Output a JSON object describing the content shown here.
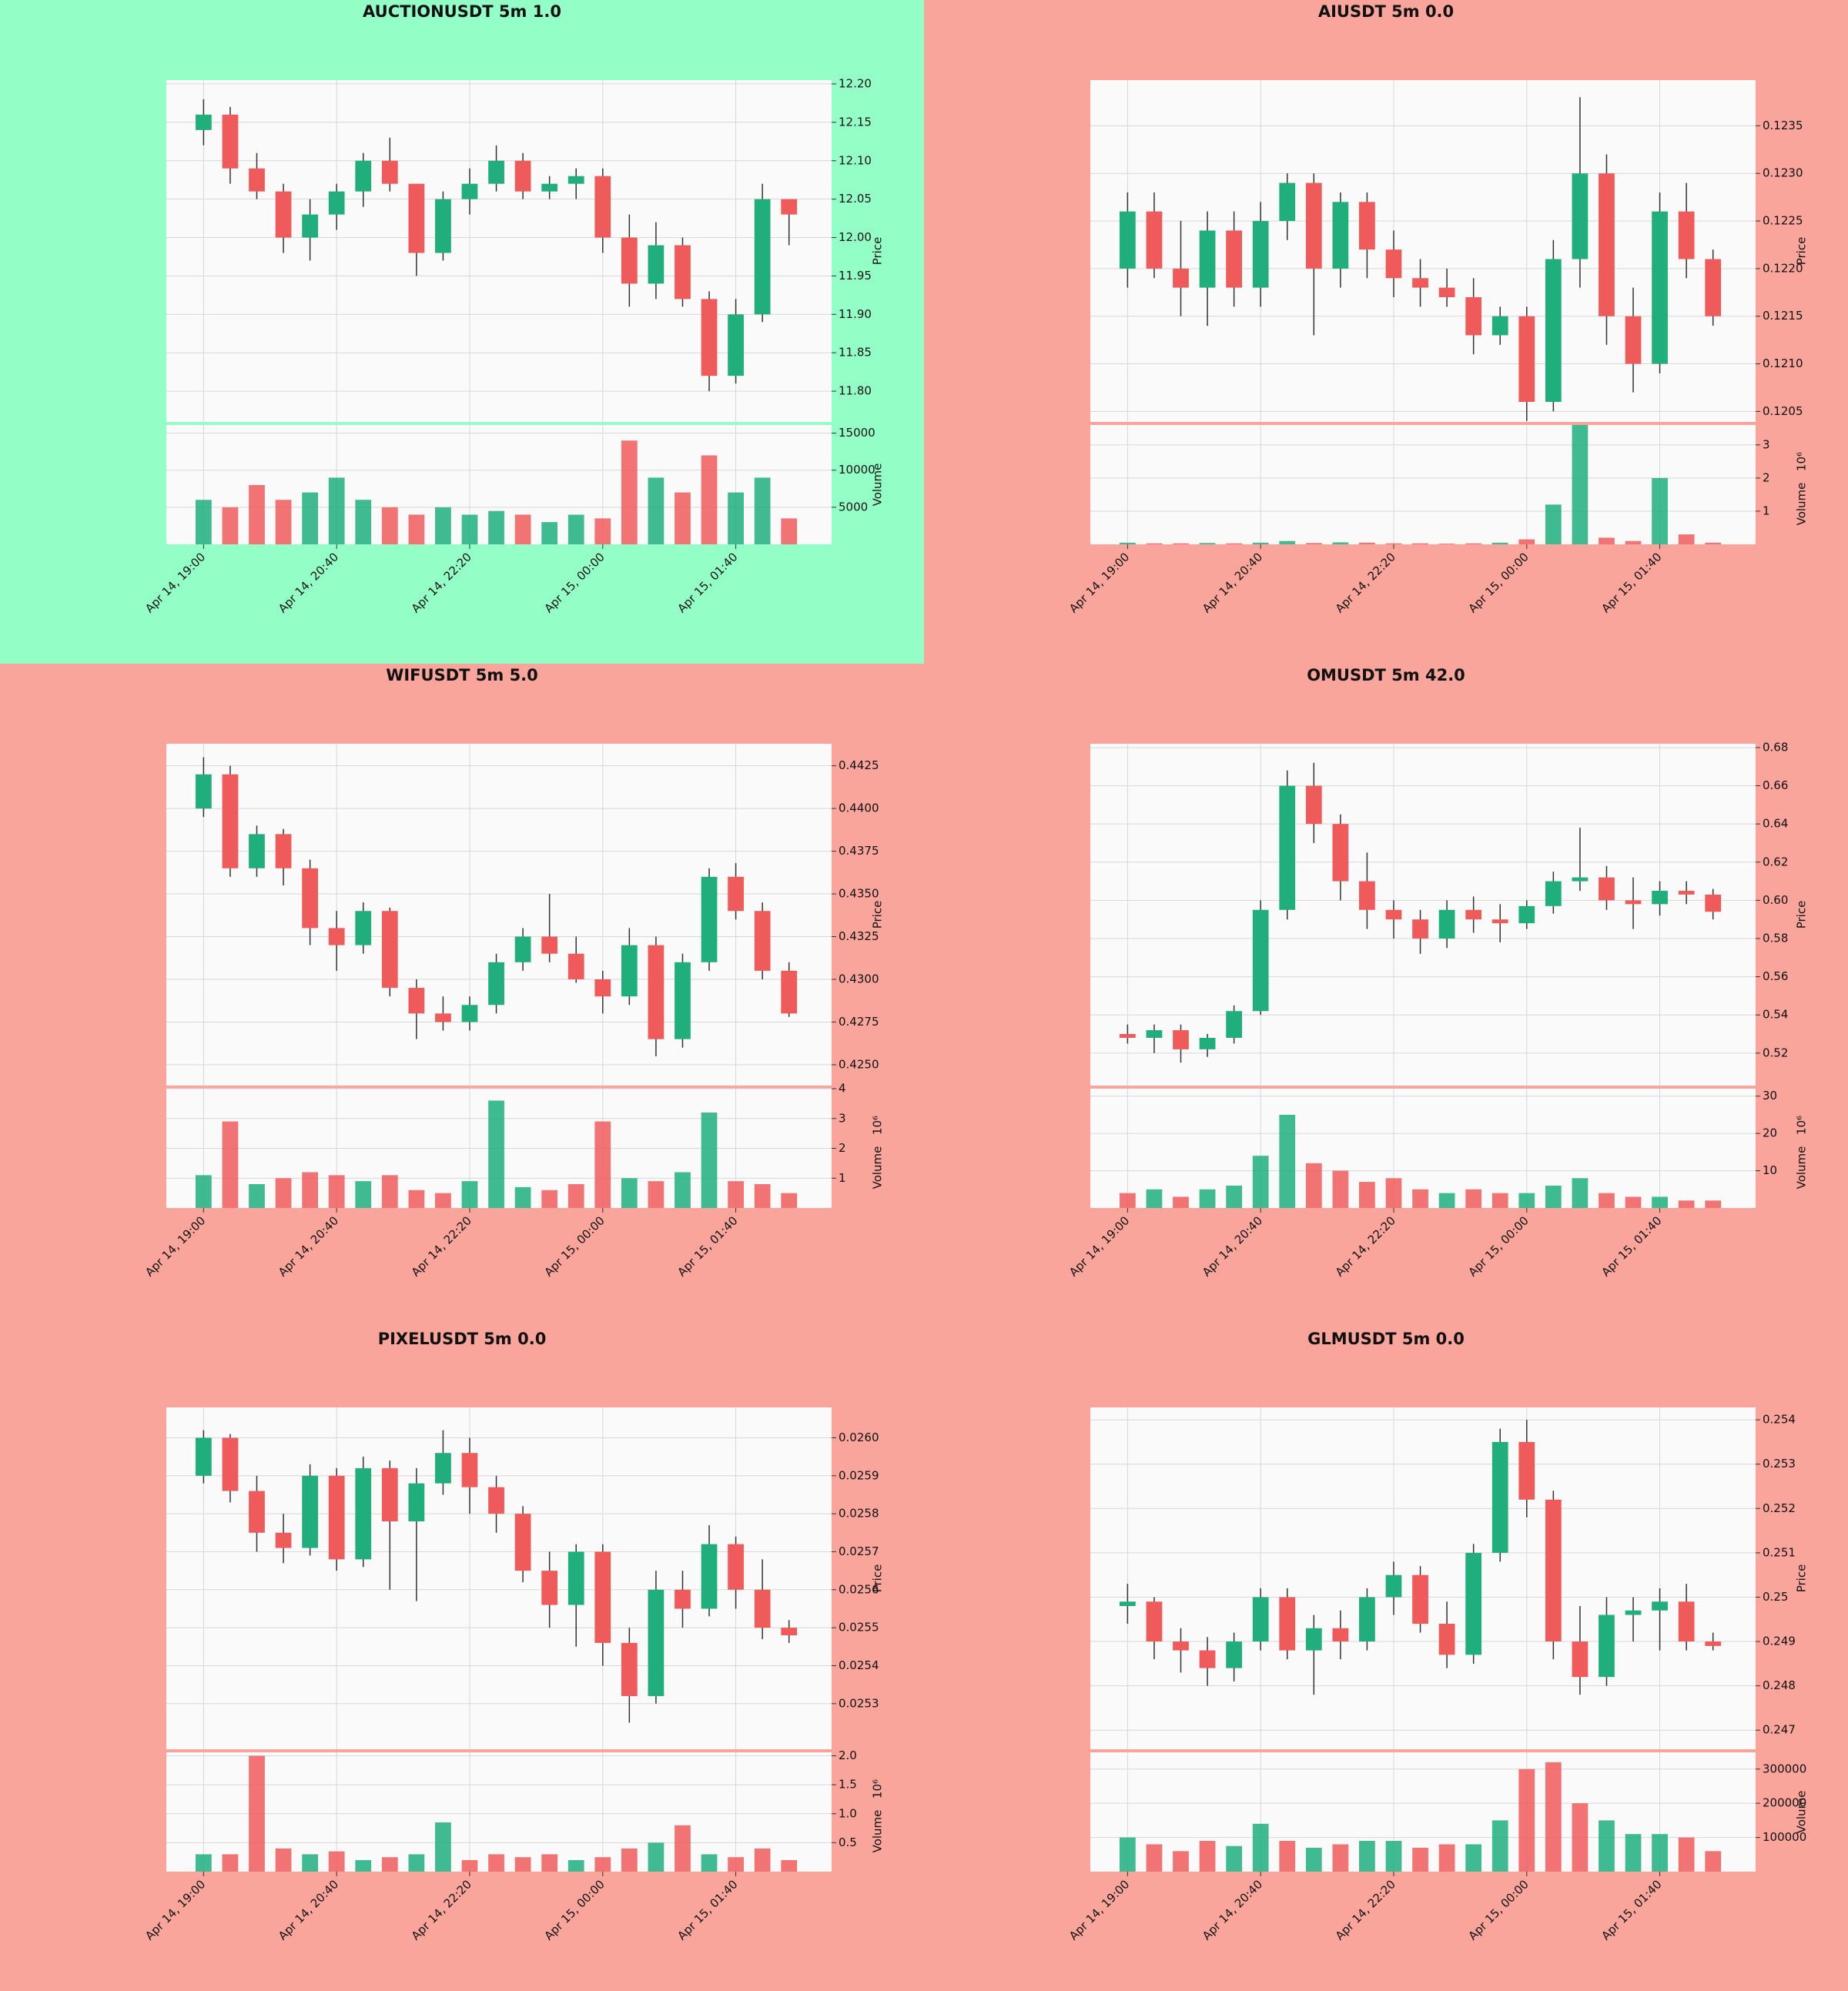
{
  "chart_data": [
    {
      "type": "candlestick",
      "title": "AUCTIONUSDT 5m 1.0",
      "background": "#93ffc7",
      "up_color": "#1fae7c",
      "down_color": "#ef5a5a",
      "ylabel": "Price",
      "y2label": "Volume",
      "xlim": [
        -1.4,
        23.6
      ],
      "xticks": [
        {
          "value": 0,
          "label": "Apr 14, 19:00"
        },
        {
          "value": 5,
          "label": "Apr 14, 20:40"
        },
        {
          "value": 10,
          "label": "Apr 14, 22:20"
        },
        {
          "value": 15,
          "label": "Apr 15, 00:00"
        },
        {
          "value": 20,
          "label": "Apr 15, 01:40"
        }
      ],
      "ylim": [
        11.76,
        12.205
      ],
      "yticks": [
        {
          "value": 11.8,
          "label": "11.80"
        },
        11.85,
        {
          "value": 11.9,
          "label": "11.90"
        },
        11.95,
        {
          "value": 12.0,
          "label": "12.00"
        },
        12.05,
        {
          "value": 12.1,
          "label": "12.10"
        },
        12.15,
        {
          "value": 12.2,
          "label": "12.20"
        }
      ],
      "y2lim": [
        0,
        16100
      ],
      "y2ticks": [
        5000,
        10000,
        15000
      ],
      "open": [
        12.14,
        12.16,
        12.09,
        12.06,
        12.0,
        12.03,
        12.06,
        12.1,
        12.07,
        11.98,
        12.05,
        12.07,
        12.1,
        12.06,
        12.07,
        12.08,
        12.0,
        11.94,
        11.99,
        11.92,
        11.82,
        11.9,
        12.05
      ],
      "high": [
        12.18,
        12.17,
        12.11,
        12.07,
        12.05,
        12.07,
        12.11,
        12.13,
        12.07,
        12.06,
        12.09,
        12.12,
        12.11,
        12.08,
        12.09,
        12.09,
        12.03,
        12.02,
        12.0,
        11.93,
        11.92,
        12.07,
        12.05
      ],
      "low": [
        12.12,
        12.07,
        12.05,
        11.98,
        11.97,
        12.01,
        12.04,
        12.06,
        11.95,
        11.97,
        12.03,
        12.06,
        12.05,
        12.05,
        12.05,
        11.98,
        11.91,
        11.92,
        11.91,
        11.8,
        11.81,
        11.89,
        11.99
      ],
      "close": [
        12.16,
        12.09,
        12.06,
        12.0,
        12.03,
        12.06,
        12.1,
        12.07,
        11.98,
        12.05,
        12.07,
        12.1,
        12.06,
        12.07,
        12.08,
        12.0,
        11.94,
        11.99,
        11.92,
        11.82,
        11.9,
        12.05,
        12.03
      ],
      "volume": [
        6000,
        5000,
        8000,
        6000,
        7000,
        9000,
        6000,
        5000,
        4000,
        5000,
        4000,
        4500,
        4000,
        3000,
        4000,
        3500,
        14000,
        9000,
        7000,
        12000,
        7000,
        9000,
        3500
      ]
    },
    {
      "type": "candlestick",
      "title": "AIUSDT 5m 0.0",
      "background": "#f9a59b",
      "up_color": "#1fae7c",
      "down_color": "#ef5a5a",
      "ylabel": "Price",
      "y2label": "Volume",
      "y2scale": "10⁶",
      "xlim": [
        -1.4,
        23.6
      ],
      "xticks": [
        {
          "value": 0,
          "label": "Apr 14, 19:00"
        },
        {
          "value": 5,
          "label": "Apr 14, 20:40"
        },
        {
          "value": 10,
          "label": "Apr 14, 22:20"
        },
        {
          "value": 15,
          "label": "Apr 15, 00:00"
        },
        {
          "value": 20,
          "label": "Apr 15, 01:40"
        }
      ],
      "ylim": [
        0.12039,
        0.12398
      ],
      "yticks": [
        0.1205,
        {
          "value": 0.121,
          "label": "0.1210"
        },
        0.1215,
        {
          "value": 0.122,
          "label": "0.1220"
        },
        0.1225,
        {
          "value": 0.123,
          "label": "0.1230"
        },
        0.1235
      ],
      "y2lim": [
        0,
        3.6
      ],
      "y2ticks": [
        1,
        2,
        3
      ],
      "open": [
        0.122,
        0.1226,
        0.122,
        0.1218,
        0.1224,
        0.1218,
        0.1225,
        0.1229,
        0.122,
        0.1227,
        0.1222,
        0.1219,
        0.1218,
        0.1217,
        0.1213,
        0.1215,
        0.1206,
        0.1221,
        0.123,
        0.1215,
        0.121,
        0.1226,
        0.1221
      ],
      "high": [
        0.1228,
        0.1228,
        0.1225,
        0.1226,
        0.1226,
        0.1227,
        0.123,
        0.123,
        0.1228,
        0.1228,
        0.1224,
        0.1221,
        0.122,
        0.1219,
        0.1216,
        0.1216,
        0.1223,
        0.1238,
        0.1232,
        0.1218,
        0.1228,
        0.1229,
        0.1222
      ],
      "low": [
        0.1218,
        0.1219,
        0.1215,
        0.1214,
        0.1216,
        0.1216,
        0.1223,
        0.1213,
        0.1218,
        0.1219,
        0.1217,
        0.1216,
        0.1216,
        0.1211,
        0.1212,
        0.1204,
        0.1205,
        0.1218,
        0.1212,
        0.1207,
        0.1209,
        0.1219,
        0.1214
      ],
      "close": [
        0.1226,
        0.122,
        0.1218,
        0.1224,
        0.1218,
        0.1225,
        0.1229,
        0.122,
        0.1227,
        0.1222,
        0.1219,
        0.1218,
        0.1217,
        0.1213,
        0.1215,
        0.1206,
        0.1221,
        0.123,
        0.1215,
        0.121,
        0.1226,
        0.1221,
        0.1215
      ],
      "volume": [
        0.05,
        0.03,
        0.03,
        0.04,
        0.03,
        0.05,
        0.1,
        0.04,
        0.06,
        0.05,
        0.03,
        0.03,
        0.02,
        0.03,
        0.05,
        0.15,
        1.2,
        3.6,
        0.2,
        0.1,
        2.0,
        0.3,
        0.05
      ]
    },
    {
      "type": "candlestick",
      "title": "WIFUSDT 5m 5.0",
      "background": "#f9a59b",
      "up_color": "#1fae7c",
      "down_color": "#ef5a5a",
      "ylabel": "Price",
      "y2label": "Volume",
      "y2scale": "10⁶",
      "xlim": [
        -1.4,
        23.6
      ],
      "xticks": [
        {
          "value": 0,
          "label": "Apr 14, 19:00"
        },
        {
          "value": 5,
          "label": "Apr 14, 20:40"
        },
        {
          "value": 10,
          "label": "Apr 14, 22:20"
        },
        {
          "value": 15,
          "label": "Apr 15, 00:00"
        },
        {
          "value": 20,
          "label": "Apr 15, 01:40"
        }
      ],
      "ylim": [
        0.42378,
        0.44379
      ],
      "yticks": [
        {
          "value": 0.425,
          "label": "0.4250"
        },
        0.4275,
        {
          "value": 0.43,
          "label": "0.4300"
        },
        0.4325,
        {
          "value": 0.435,
          "label": "0.4350"
        },
        0.4375,
        {
          "value": 0.44,
          "label": "0.4400"
        },
        0.4425
      ],
      "y2lim": [
        0,
        4
      ],
      "y2ticks": [
        1,
        2,
        3,
        4
      ],
      "open": [
        0.44,
        0.442,
        0.4365,
        0.4385,
        0.4365,
        0.433,
        0.432,
        0.434,
        0.4295,
        0.428,
        0.4275,
        0.4285,
        0.431,
        0.4325,
        0.4315,
        0.43,
        0.429,
        0.432,
        0.4265,
        0.431,
        0.436,
        0.434,
        0.4305
      ],
      "high": [
        0.443,
        0.4425,
        0.439,
        0.4388,
        0.437,
        0.434,
        0.4345,
        0.4342,
        0.43,
        0.429,
        0.429,
        0.4315,
        0.433,
        0.435,
        0.4325,
        0.4305,
        0.433,
        0.4325,
        0.4315,
        0.4365,
        0.4368,
        0.4345,
        0.431
      ],
      "low": [
        0.4395,
        0.436,
        0.436,
        0.4355,
        0.432,
        0.4305,
        0.4315,
        0.429,
        0.4265,
        0.427,
        0.427,
        0.428,
        0.4305,
        0.431,
        0.4298,
        0.428,
        0.4285,
        0.4255,
        0.426,
        0.4305,
        0.4335,
        0.43,
        0.4278
      ],
      "close": [
        0.442,
        0.4365,
        0.4385,
        0.4365,
        0.433,
        0.432,
        0.434,
        0.4295,
        0.428,
        0.4275,
        0.4285,
        0.431,
        0.4325,
        0.4315,
        0.43,
        0.429,
        0.432,
        0.4265,
        0.431,
        0.436,
        0.434,
        0.4305,
        0.428
      ],
      "volume": [
        1.1,
        2.9,
        0.8,
        1.0,
        1.2,
        1.1,
        0.9,
        1.1,
        0.6,
        0.5,
        0.9,
        3.6,
        0.7,
        0.6,
        0.8,
        2.9,
        1.0,
        0.9,
        1.2,
        3.2,
        0.9,
        0.8,
        0.5
      ]
    },
    {
      "type": "candlestick",
      "title": "OMUSDT 5m 42.0",
      "background": "#f9a59b",
      "up_color": "#1fae7c",
      "down_color": "#ef5a5a",
      "ylabel": "Price",
      "y2label": "Volume",
      "y2scale": "10⁶",
      "xlim": [
        -1.4,
        23.6
      ],
      "xticks": [
        {
          "value": 0,
          "label": "Apr 14, 19:00"
        },
        {
          "value": 5,
          "label": "Apr 14, 20:40"
        },
        {
          "value": 10,
          "label": "Apr 14, 22:20"
        },
        {
          "value": 15,
          "label": "Apr 15, 00:00"
        },
        {
          "value": 20,
          "label": "Apr 15, 01:40"
        }
      ],
      "ylim": [
        0.503,
        0.682
      ],
      "yticks": [
        0.52,
        0.54,
        0.56,
        0.58,
        {
          "value": 0.6,
          "label": "0.60"
        },
        0.62,
        0.64,
        0.66,
        0.68
      ],
      "y2lim": [
        0,
        32
      ],
      "y2ticks": [
        10,
        20,
        30
      ],
      "open": [
        0.53,
        0.528,
        0.532,
        0.522,
        0.528,
        0.542,
        0.595,
        0.66,
        0.64,
        0.61,
        0.595,
        0.59,
        0.58,
        0.595,
        0.59,
        0.588,
        0.597,
        0.61,
        0.612,
        0.6,
        0.598,
        0.605,
        0.603
      ],
      "high": [
        0.535,
        0.535,
        0.535,
        0.53,
        0.545,
        0.6,
        0.668,
        0.672,
        0.645,
        0.625,
        0.6,
        0.595,
        0.6,
        0.602,
        0.598,
        0.6,
        0.615,
        0.638,
        0.618,
        0.612,
        0.61,
        0.61,
        0.606
      ],
      "low": [
        0.525,
        0.52,
        0.515,
        0.518,
        0.525,
        0.54,
        0.59,
        0.63,
        0.6,
        0.585,
        0.58,
        0.572,
        0.575,
        0.583,
        0.578,
        0.585,
        0.593,
        0.605,
        0.595,
        0.585,
        0.592,
        0.598,
        0.59
      ],
      "close": [
        0.528,
        0.532,
        0.522,
        0.528,
        0.542,
        0.595,
        0.66,
        0.64,
        0.61,
        0.595,
        0.59,
        0.58,
        0.595,
        0.59,
        0.588,
        0.597,
        0.61,
        0.612,
        0.6,
        0.598,
        0.605,
        0.603,
        0.594
      ],
      "volume": [
        4,
        5,
        3,
        5,
        6,
        14,
        25,
        12,
        10,
        7,
        8,
        5,
        4,
        5,
        4,
        4,
        6,
        8,
        4,
        3,
        3,
        2,
        2
      ]
    },
    {
      "type": "candlestick",
      "title": "PIXELUSDT 5m 0.0",
      "background": "#f9a59b",
      "up_color": "#1fae7c",
      "down_color": "#ef5a5a",
      "ylabel": "Price",
      "y2label": "Volume",
      "y2scale": "10⁶",
      "xlim": [
        -1.4,
        23.6
      ],
      "xticks": [
        {
          "value": 0,
          "label": "Apr 14, 19:00"
        },
        {
          "value": 5,
          "label": "Apr 14, 20:40"
        },
        {
          "value": 10,
          "label": "Apr 14, 22:20"
        },
        {
          "value": 15,
          "label": "Apr 15, 00:00"
        },
        {
          "value": 20,
          "label": "Apr 15, 01:40"
        }
      ],
      "ylim": [
        0.02518,
        0.02608
      ],
      "yticks": [
        0.0253,
        0.0254,
        0.0255,
        0.0256,
        0.0257,
        0.0258,
        0.0259,
        {
          "value": 0.026,
          "label": "0.0260"
        }
      ],
      "y2lim": [
        0,
        2.06
      ],
      "y2ticks": [
        0.5,
        {
          "value": 1,
          "label": "1.0"
        },
        1.5,
        {
          "value": 2,
          "label": "2.0"
        }
      ],
      "open": [
        0.0259,
        0.026,
        0.02586,
        0.02575,
        0.02571,
        0.0259,
        0.02568,
        0.02592,
        0.02578,
        0.02588,
        0.02596,
        0.02587,
        0.0258,
        0.02565,
        0.02556,
        0.0257,
        0.02546,
        0.02532,
        0.0256,
        0.02555,
        0.02572,
        0.0256,
        0.0255
      ],
      "high": [
        0.02602,
        0.02601,
        0.0259,
        0.0258,
        0.02593,
        0.02592,
        0.02595,
        0.02594,
        0.02592,
        0.02602,
        0.026,
        0.0259,
        0.02582,
        0.0257,
        0.02572,
        0.02572,
        0.0255,
        0.02565,
        0.02565,
        0.02577,
        0.02574,
        0.02568,
        0.02552
      ],
      "low": [
        0.02588,
        0.02583,
        0.0257,
        0.02567,
        0.02569,
        0.02565,
        0.02566,
        0.0256,
        0.02557,
        0.02585,
        0.0258,
        0.02575,
        0.02562,
        0.0255,
        0.02545,
        0.0254,
        0.02525,
        0.0253,
        0.0255,
        0.02553,
        0.02555,
        0.02547,
        0.02546
      ],
      "close": [
        0.026,
        0.02586,
        0.02575,
        0.02571,
        0.0259,
        0.02568,
        0.02592,
        0.02578,
        0.02588,
        0.02596,
        0.02587,
        0.0258,
        0.02565,
        0.02556,
        0.0257,
        0.02546,
        0.02532,
        0.0256,
        0.02555,
        0.02572,
        0.0256,
        0.0255,
        0.02548
      ],
      "volume": [
        0.3,
        0.3,
        2.0,
        0.4,
        0.3,
        0.35,
        0.2,
        0.25,
        0.3,
        0.85,
        0.2,
        0.3,
        0.25,
        0.3,
        0.2,
        0.25,
        0.4,
        0.5,
        0.8,
        0.3,
        0.25,
        0.4,
        0.2
      ]
    },
    {
      "type": "candlestick",
      "title": "GLMUSDT 5m 0.0",
      "background": "#f9a59b",
      "up_color": "#1fae7c",
      "down_color": "#ef5a5a",
      "ylabel": "Price",
      "y2label": "Volume",
      "xlim": [
        -1.4,
        23.6
      ],
      "xticks": [
        {
          "value": 0,
          "label": "Apr 14, 19:00"
        },
        {
          "value": 5,
          "label": "Apr 14, 20:40"
        },
        {
          "value": 10,
          "label": "Apr 14, 22:20"
        },
        {
          "value": 15,
          "label": "Apr 15, 00:00"
        },
        {
          "value": 20,
          "label": "Apr 15, 01:40"
        }
      ],
      "ylim": [
        0.24657,
        0.25428
      ],
      "yticks": [
        0.247,
        0.248,
        0.249,
        0.25,
        0.251,
        0.252,
        0.253,
        0.254
      ],
      "y2lim": [
        0,
        349000
      ],
      "y2ticks": [
        100000,
        200000,
        300000
      ],
      "open": [
        0.2498,
        0.2499,
        0.249,
        0.2488,
        0.2484,
        0.249,
        0.25,
        0.2488,
        0.2493,
        0.249,
        0.25,
        0.2505,
        0.2494,
        0.2487,
        0.251,
        0.2535,
        0.2522,
        0.249,
        0.2482,
        0.2496,
        0.2497,
        0.2499,
        0.249
      ],
      "high": [
        0.2503,
        0.25,
        0.2493,
        0.2491,
        0.2492,
        0.2502,
        0.2502,
        0.2496,
        0.2497,
        0.2502,
        0.2508,
        0.2507,
        0.2499,
        0.2512,
        0.2538,
        0.254,
        0.2524,
        0.2498,
        0.25,
        0.25,
        0.2502,
        0.2503,
        0.2492
      ],
      "low": [
        0.2494,
        0.2486,
        0.2483,
        0.248,
        0.2481,
        0.2488,
        0.2486,
        0.2478,
        0.2486,
        0.2488,
        0.2496,
        0.2492,
        0.2484,
        0.2485,
        0.2508,
        0.2518,
        0.2486,
        0.2478,
        0.248,
        0.249,
        0.2488,
        0.2488,
        0.2488
      ],
      "close": [
        0.2499,
        0.249,
        0.2488,
        0.2484,
        0.249,
        0.25,
        0.2488,
        0.2493,
        0.249,
        0.25,
        0.2505,
        0.2494,
        0.2487,
        0.251,
        0.2535,
        0.2522,
        0.249,
        0.2482,
        0.2496,
        0.2497,
        0.2499,
        0.249,
        0.2489
      ],
      "volume": [
        100000,
        80000,
        60000,
        90000,
        75000,
        140000,
        90000,
        70000,
        80000,
        90000,
        90000,
        70000,
        80000,
        80000,
        150000,
        300000,
        320000,
        200000,
        150000,
        110000,
        110000,
        100000,
        60000
      ]
    }
  ]
}
